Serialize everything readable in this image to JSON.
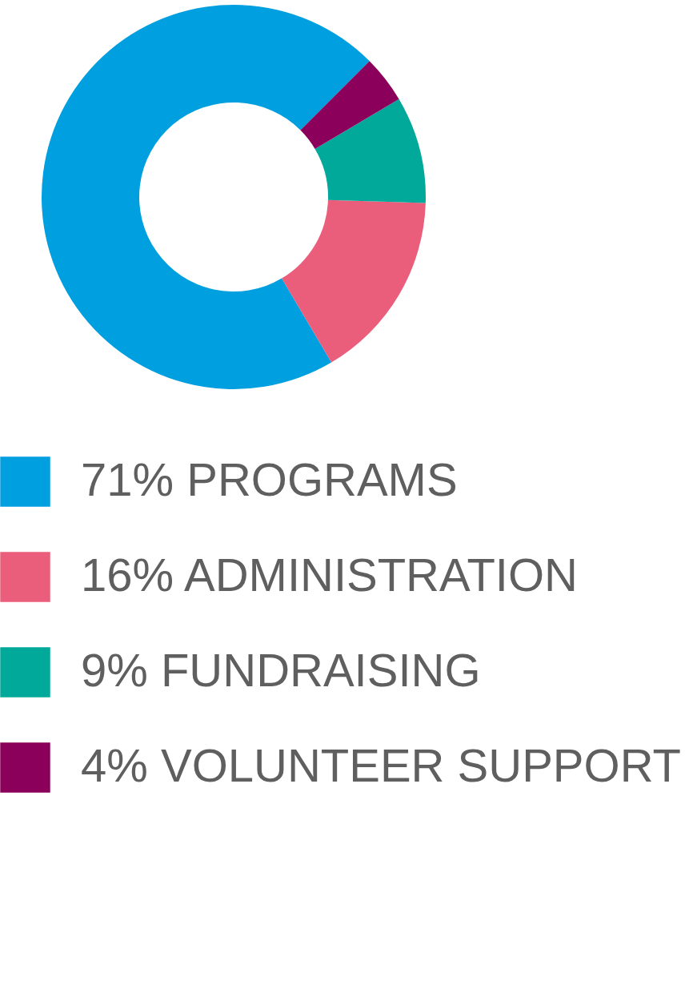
{
  "chart_data": {
    "type": "donut",
    "categories": [
      "71% PROGRAMS",
      "16% ADMINISTRATION",
      "9% FUNDRAISING",
      "4% VOLUNTEER SUPPORT"
    ],
    "values": [
      71,
      16,
      9,
      4
    ],
    "colors": [
      "#009fe0",
      "#eb5e7b",
      "#00a99a",
      "#8a005a"
    ],
    "legend": "bottom"
  }
}
